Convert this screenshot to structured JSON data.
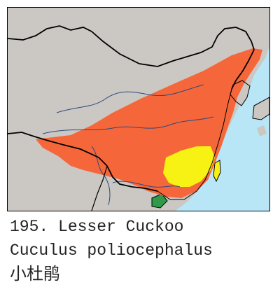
{
  "map": {
    "colors": {
      "sea": "#b9e6f7",
      "land": "#cbc7c3",
      "range_orange": "#f5673a",
      "range_yellow": "#f7f213",
      "range_green": "#2e9a4a",
      "border": "#000000",
      "river": "#2a4a7f"
    }
  },
  "caption": {
    "line1": "195. Lesser Cuckoo",
    "line2": "Cuculus poliocephalus",
    "line3": "小杜鹃"
  }
}
